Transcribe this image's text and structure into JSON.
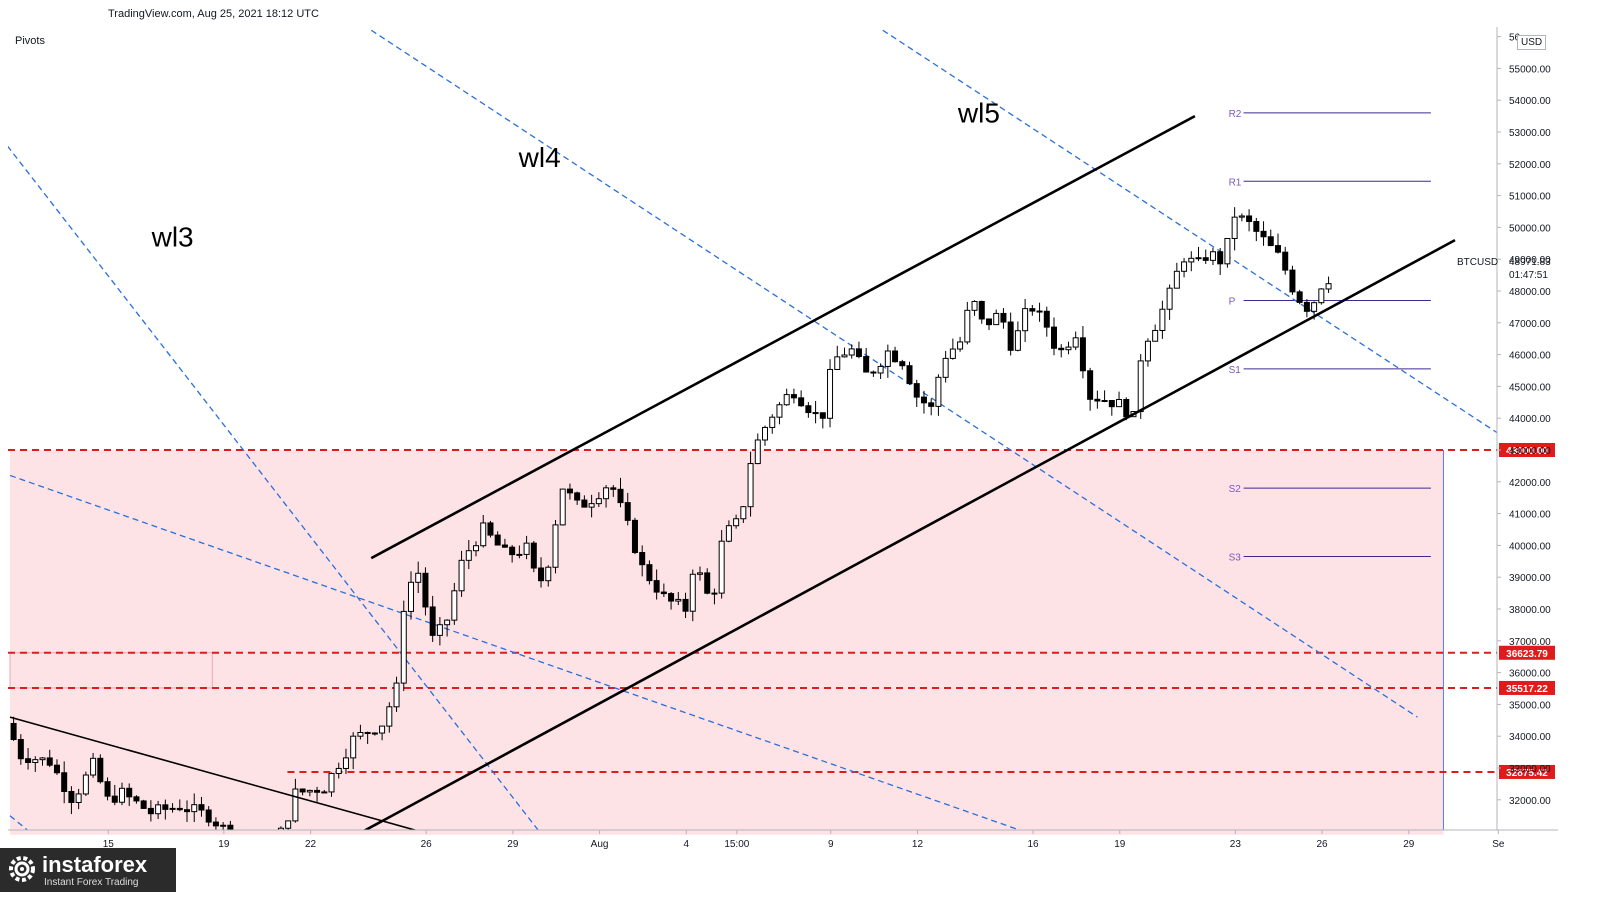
{
  "header": {
    "source": "TradingView.com, Aug 25, 2021 18:12 UTC"
  },
  "indicator": {
    "name": "Pivots"
  },
  "axis": {
    "unit": "USD"
  },
  "symbol_label": {
    "symbol": "BTCUSD",
    "price": "48971.83",
    "countdown": "01:47:51"
  },
  "logo": {
    "name": "instaforex",
    "tagline": "Instant Forex Trading"
  },
  "colors": {
    "candle": "#000000",
    "zone_fill": "#fde2e6",
    "level_line": "#e01b1b",
    "warning_line": "#2a6fdb",
    "channel": "#000000",
    "pivot": "#3d2b8f"
  },
  "chart_data": {
    "type": "candlestick",
    "symbol": "BTCUSD",
    "ylim": [
      30900,
      56200
    ],
    "y_ticks": [
      32000,
      33000,
      34000,
      35000,
      36000,
      37000,
      38000,
      39000,
      40000,
      41000,
      42000,
      43000,
      44000,
      45000,
      46000,
      47000,
      48000,
      49000,
      50000,
      51000,
      52000,
      53000,
      54000,
      55000
    ],
    "y_tick_labels": [
      "32000.00",
      "33000.00",
      "34000.00",
      "35000.00",
      "36000.00",
      "37000.00",
      "38000.00",
      "39000.00",
      "40000.00",
      "41000.00",
      "42000.00",
      "43000.00",
      "44000.00",
      "45000.00",
      "46000.00",
      "47000.00",
      "48000.00",
      "49000.00",
      "50000.00",
      "51000.00",
      "52000.00",
      "53000.00",
      "54000.00",
      "55000.00"
    ],
    "y_top_label_partial": "56",
    "x_ticks": [
      {
        "label": "15",
        "d": 3.4
      },
      {
        "label": "19",
        "d": 7.4
      },
      {
        "label": "22",
        "d": 10.4
      },
      {
        "label": "26",
        "d": 14.4
      },
      {
        "label": "29",
        "d": 17.4
      },
      {
        "label": "Aug",
        "d": 20.4
      },
      {
        "label": "4",
        "d": 23.4
      },
      {
        "label": "15:00",
        "d": 25.15
      },
      {
        "label": "9",
        "d": 28.4
      },
      {
        "label": "12",
        "d": 31.4
      },
      {
        "label": "16",
        "d": 35.4
      },
      {
        "label": "19",
        "d": 38.4
      },
      {
        "label": "23",
        "d": 42.4
      },
      {
        "label": "26",
        "d": 45.4
      },
      {
        "label": "29",
        "d": 48.4
      },
      {
        "label": "Se",
        "d": 51.5
      }
    ],
    "x_range_days": [
      0,
      51.7
    ],
    "anchors": [
      {
        "d": 0.0,
        "p": 34400
      },
      {
        "d": 0.5,
        "p": 33400
      },
      {
        "d": 1.5,
        "p": 33200
      },
      {
        "d": 2.3,
        "p": 32000
      },
      {
        "d": 3.0,
        "p": 33100
      },
      {
        "d": 3.5,
        "p": 32000
      },
      {
        "d": 4.0,
        "p": 32200
      },
      {
        "d": 5.0,
        "p": 31600
      },
      {
        "d": 6.0,
        "p": 31800
      },
      {
        "d": 7.0,
        "p": 31500
      },
      {
        "d": 8.0,
        "p": 30700
      },
      {
        "d": 9.0,
        "p": 30300
      },
      {
        "d": 9.6,
        "p": 31100
      },
      {
        "d": 10.0,
        "p": 32200
      },
      {
        "d": 11.0,
        "p": 32400
      },
      {
        "d": 12.0,
        "p": 33900
      },
      {
        "d": 13.0,
        "p": 34400
      },
      {
        "d": 13.5,
        "p": 35500
      },
      {
        "d": 13.8,
        "p": 38600
      },
      {
        "d": 14.3,
        "p": 39200
      },
      {
        "d": 14.7,
        "p": 37000
      },
      {
        "d": 15.2,
        "p": 37500
      },
      {
        "d": 15.8,
        "p": 39600
      },
      {
        "d": 16.5,
        "p": 40500
      },
      {
        "d": 17.3,
        "p": 39700
      },
      {
        "d": 18.0,
        "p": 39900
      },
      {
        "d": 18.4,
        "p": 38700
      },
      {
        "d": 18.8,
        "p": 39600
      },
      {
        "d": 19.2,
        "p": 41900
      },
      {
        "d": 19.8,
        "p": 41200
      },
      {
        "d": 20.3,
        "p": 41500
      },
      {
        "d": 20.9,
        "p": 42000
      },
      {
        "d": 21.5,
        "p": 40600
      },
      {
        "d": 22.0,
        "p": 39300
      },
      {
        "d": 22.8,
        "p": 38300
      },
      {
        "d": 23.5,
        "p": 38000
      },
      {
        "d": 23.8,
        "p": 39500
      },
      {
        "d": 24.4,
        "p": 38100
      },
      {
        "d": 24.8,
        "p": 40300
      },
      {
        "d": 25.4,
        "p": 40800
      },
      {
        "d": 25.8,
        "p": 42900
      },
      {
        "d": 26.4,
        "p": 44000
      },
      {
        "d": 27.2,
        "p": 44900
      },
      {
        "d": 27.8,
        "p": 44300
      },
      {
        "d": 28.2,
        "p": 43900
      },
      {
        "d": 28.6,
        "p": 45800
      },
      {
        "d": 29.2,
        "p": 46200
      },
      {
        "d": 29.8,
        "p": 45300
      },
      {
        "d": 30.5,
        "p": 46100
      },
      {
        "d": 31.0,
        "p": 45800
      },
      {
        "d": 31.5,
        "p": 44700
      },
      {
        "d": 32.0,
        "p": 44300
      },
      {
        "d": 32.4,
        "p": 45900
      },
      {
        "d": 33.0,
        "p": 46400
      },
      {
        "d": 33.4,
        "p": 47800
      },
      {
        "d": 33.8,
        "p": 46900
      },
      {
        "d": 34.4,
        "p": 47300
      },
      {
        "d": 34.8,
        "p": 46200
      },
      {
        "d": 35.4,
        "p": 47600
      },
      {
        "d": 36.0,
        "p": 46900
      },
      {
        "d": 36.4,
        "p": 46000
      },
      {
        "d": 37.0,
        "p": 46700
      },
      {
        "d": 37.5,
        "p": 44700
      },
      {
        "d": 38.0,
        "p": 44600
      },
      {
        "d": 38.6,
        "p": 44400
      },
      {
        "d": 39.0,
        "p": 44000
      },
      {
        "d": 39.3,
        "p": 46300
      },
      {
        "d": 39.8,
        "p": 47000
      },
      {
        "d": 40.3,
        "p": 48000
      },
      {
        "d": 40.7,
        "p": 49100
      },
      {
        "d": 41.2,
        "p": 48800
      },
      {
        "d": 41.6,
        "p": 49200
      },
      {
        "d": 42.1,
        "p": 48900
      },
      {
        "d": 42.5,
        "p": 50400
      },
      {
        "d": 43.0,
        "p": 50100
      },
      {
        "d": 43.5,
        "p": 49600
      },
      {
        "d": 44.1,
        "p": 49000
      },
      {
        "d": 44.6,
        "p": 47900
      },
      {
        "d": 45.1,
        "p": 47400
      },
      {
        "d": 45.6,
        "p": 48400
      }
    ],
    "candle_step_days": 0.25,
    "horizontal_levels": [
      {
        "price": 43000.0,
        "label": "43000.00",
        "style": "dashed"
      },
      {
        "price": 36623.79,
        "label": "36623.79",
        "style": "dashed"
      },
      {
        "price": 35517.22,
        "label": "35517.22",
        "style": "dashed"
      },
      {
        "price": 32875.42,
        "label": "32875.42",
        "style": "dashed"
      }
    ],
    "zones": [
      {
        "from_price": 30900,
        "to_price": 43000,
        "from_d": 0,
        "to_d": 49.6
      },
      {
        "from_price": 35517.22,
        "to_price": 36623.79,
        "from_d": 0,
        "to_d": 7.0
      }
    ],
    "pivot_levels": [
      {
        "name": "R2",
        "price": 53600
      },
      {
        "name": "R1",
        "price": 51450
      },
      {
        "name": "P",
        "price": 47700
      },
      {
        "name": "S1",
        "price": 45550
      },
      {
        "name": "S2",
        "price": 41800
      },
      {
        "name": "S3",
        "price": 39650
      }
    ],
    "pivot_range_days": [
      42.2,
      49.2
    ],
    "channel_lines": [
      {
        "name": "upper",
        "d1": 12.5,
        "p1": 39600,
        "d2": 41.0,
        "p2": 53500
      },
      {
        "name": "lower",
        "d1": 12.0,
        "p1": 30900,
        "d2": 50.0,
        "p2": 49600
      }
    ],
    "trend_line_down": {
      "d1": 0,
      "p1": 34600,
      "d2": 14.6,
      "p2": 30900
    },
    "warning_lines": [
      {
        "label": "wl3",
        "d1": -2.0,
        "p1": 54800,
        "d2": 18.4,
        "p2": 30900
      },
      {
        "label": "wl4",
        "d1": 12.5,
        "p1": 56200,
        "d2": 48.7,
        "p2": 34600
      },
      {
        "label": "wl5",
        "d1": 30.2,
        "p1": 56200,
        "d2": 51.7,
        "p2": 43400
      },
      {
        "label": "",
        "d1": 0,
        "p1": 42200,
        "d2": 35.4,
        "p2": 30900
      },
      {
        "label": "",
        "d1": 0,
        "p1": 31500,
        "d2": 0.8,
        "p2": 30900
      }
    ],
    "wave_label_positions": [
      {
        "label": "wl3",
        "d": 4.9,
        "p": 49400
      },
      {
        "label": "wl4",
        "d": 17.6,
        "p": 51900
      },
      {
        "label": "wl5",
        "d": 32.8,
        "p": 53300
      }
    ]
  }
}
